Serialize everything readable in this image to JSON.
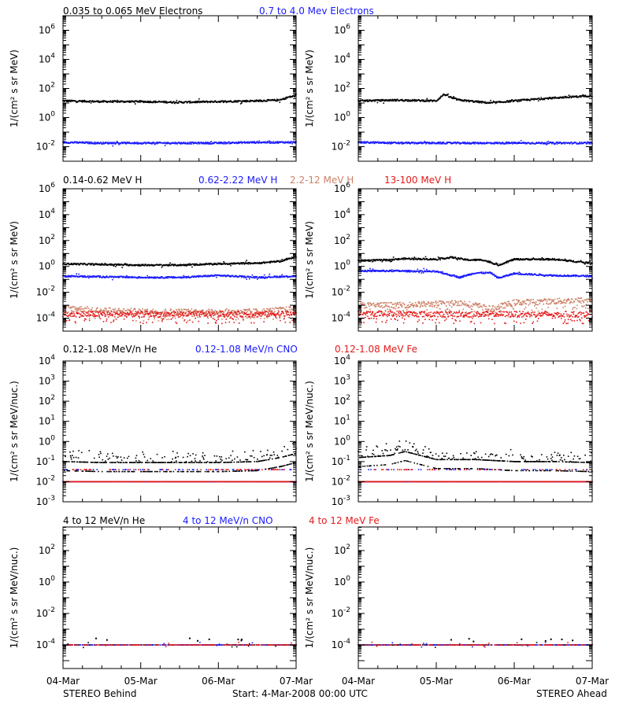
{
  "colors": {
    "black": "#000000",
    "blue": "#1a1aff",
    "salmon": "#cc8066",
    "red": "#e61a1a"
  },
  "rows": [
    {
      "legend": [
        {
          "text": "0.035 to 0.065 MeV Electrons",
          "color": "#000000"
        },
        {
          "text": "0.7 to 4.0 Mev Electrons",
          "color": "#1a1aff"
        }
      ]
    },
    {
      "legend": [
        {
          "text": "0.14-0.62 MeV H",
          "color": "#000000"
        },
        {
          "text": "0.62-2.22 MeV H",
          "color": "#1a1aff"
        },
        {
          "text": "2.2-12 MeV H",
          "color": "#cc8066"
        },
        {
          "text": "13-100 MeV H",
          "color": "#e61a1a"
        }
      ]
    },
    {
      "legend": [
        {
          "text": "0.12-1.08 MeV/n He",
          "color": "#000000"
        },
        {
          "text": "0.12-1.08 MeV/n CNO",
          "color": "#1a1aff"
        },
        {
          "text": "0.12-1.08 MeV Fe",
          "color": "#e61a1a"
        }
      ]
    },
    {
      "legend": [
        {
          "text": "4 to 12 MeV/n He",
          "color": "#000000"
        },
        {
          "text": "4 to 12 MeV/n CNO",
          "color": "#1a1aff"
        },
        {
          "text": "4 to 12 MeV Fe",
          "color": "#e61a1a"
        }
      ]
    }
  ],
  "x_ticks": [
    "04-Mar",
    "05-Mar",
    "06-Mar",
    "07-Mar"
  ],
  "footer": {
    "left": "STEREO Behind",
    "center": "Start:  4-Mar-2008 00:00 UTC",
    "right": "STEREO Ahead"
  },
  "chart_data": [
    {
      "type": "scatter",
      "panel": "STEREO Behind",
      "row": 0,
      "ylabel": "1/(cm² s sr MeV)",
      "yscale": "log",
      "ylim_exp": [
        -3,
        7
      ],
      "ytick_exp": [
        -2,
        0,
        2,
        4,
        6
      ],
      "x_days": [
        0,
        3
      ],
      "series": [
        {
          "name": "0.035 to 0.065 MeV Electrons",
          "color": "#000000",
          "x": [
            0,
            0.5,
            1,
            1.5,
            2,
            2.5,
            2.8,
            2.9,
            3
          ],
          "y_log10": [
            1.15,
            1.1,
            1.1,
            1.05,
            1.1,
            1.15,
            1.2,
            1.4,
            1.5
          ]
        },
        {
          "name": "0.7 to 4.0 Mev Electrons",
          "color": "#1a1aff",
          "x": [
            0,
            0.5,
            1,
            1.5,
            2,
            2.5,
            3
          ],
          "y_log10": [
            -1.7,
            -1.75,
            -1.75,
            -1.75,
            -1.75,
            -1.7,
            -1.7
          ]
        }
      ]
    },
    {
      "type": "scatter",
      "panel": "STEREO Ahead",
      "row": 0,
      "ylabel": "1/(cm² s sr MeV)",
      "yscale": "log",
      "ylim_exp": [
        -3,
        7
      ],
      "ytick_exp": [
        -2,
        0,
        2,
        4,
        6
      ],
      "x_days": [
        0,
        3
      ],
      "series": [
        {
          "name": "0.035 to 0.065 MeV Electrons",
          "color": "#000000",
          "x": [
            0,
            0.5,
            1,
            1.1,
            1.2,
            1.3,
            1.5,
            1.7,
            2,
            2.5,
            3
          ],
          "y_log10": [
            1.15,
            1.2,
            1.15,
            1.6,
            1.35,
            1.2,
            1.1,
            1.0,
            1.15,
            1.35,
            1.5
          ]
        },
        {
          "name": "0.7 to 4.0 Mev Electrons",
          "color": "#1a1aff",
          "x": [
            0,
            0.5,
            1,
            1.5,
            2,
            2.5,
            3
          ],
          "y_log10": [
            -1.7,
            -1.75,
            -1.75,
            -1.75,
            -1.75,
            -1.75,
            -1.75
          ]
        }
      ]
    },
    {
      "type": "scatter",
      "panel": "STEREO Behind",
      "row": 1,
      "ylabel": "1/(cm² s sr MeV)",
      "yscale": "log",
      "ylim_exp": [
        -5,
        6
      ],
      "ytick_exp": [
        -4,
        -2,
        0,
        2,
        4,
        6
      ],
      "x_days": [
        0,
        3
      ],
      "series": [
        {
          "name": "0.14-0.62 MeV H",
          "color": "#000000",
          "x": [
            0,
            0.5,
            1,
            1.5,
            2,
            2.5,
            2.8,
            3
          ],
          "y_log10": [
            0.2,
            0.15,
            0.1,
            0.1,
            0.2,
            0.25,
            0.4,
            0.75
          ]
        },
        {
          "name": "0.62-2.22 MeV H",
          "color": "#1a1aff",
          "x": [
            0,
            0.5,
            1,
            1.5,
            2,
            2.5,
            3
          ],
          "y_log10": [
            -0.75,
            -0.8,
            -0.85,
            -0.85,
            -0.7,
            -0.85,
            -0.75
          ]
        },
        {
          "name": "2.2-12 MeV H",
          "color": "#cc8066",
          "x": [
            0,
            0.5,
            1,
            1.5,
            2,
            2.5,
            3
          ],
          "y_log10": [
            -3.2,
            -3.4,
            -3.5,
            -3.5,
            -3.5,
            -3.5,
            -3.3
          ]
        },
        {
          "name": "13-100 MeV H",
          "color": "#e61a1a",
          "x": [
            0,
            0.5,
            1,
            1.5,
            2,
            2.5,
            3
          ],
          "y_log10": [
            -3.7,
            -3.7,
            -3.7,
            -3.7,
            -3.7,
            -3.7,
            -3.65
          ]
        }
      ]
    },
    {
      "type": "scatter",
      "panel": "STEREO Ahead",
      "row": 1,
      "ylabel": "1/(cm² s sr MeV)",
      "yscale": "log",
      "ylim_exp": [
        -5,
        6
      ],
      "ytick_exp": [
        -4,
        -2,
        0,
        2,
        4,
        6
      ],
      "x_days": [
        0,
        3
      ],
      "series": [
        {
          "name": "0.14-0.62 MeV H",
          "color": "#000000",
          "x": [
            0,
            0.4,
            0.6,
            1,
            1.2,
            1.4,
            1.6,
            1.8,
            2,
            2.5,
            3
          ],
          "y_log10": [
            0.45,
            0.5,
            0.6,
            0.55,
            0.7,
            0.5,
            0.5,
            0.1,
            0.55,
            0.55,
            0.25
          ]
        },
        {
          "name": "0.62-2.22 MeV H",
          "color": "#1a1aff",
          "x": [
            0,
            0.5,
            1,
            1.3,
            1.5,
            1.7,
            1.8,
            2,
            2.5,
            3
          ],
          "y_log10": [
            -0.35,
            -0.35,
            -0.4,
            -0.85,
            -0.5,
            -0.5,
            -0.9,
            -0.55,
            -0.7,
            -0.75
          ]
        },
        {
          "name": "2.2-12 MeV H",
          "color": "#cc8066",
          "x": [
            0,
            0.5,
            1,
            1.3,
            1.5,
            1.7,
            2,
            2.5,
            3
          ],
          "y_log10": [
            -3.0,
            -3.0,
            -2.9,
            -2.8,
            -3.0,
            -3.3,
            -2.8,
            -2.7,
            -2.6
          ]
        },
        {
          "name": "13-100 MeV H",
          "color": "#e61a1a",
          "x": [
            0,
            0.5,
            1,
            1.5,
            2,
            2.5,
            3
          ],
          "y_log10": [
            -3.65,
            -3.65,
            -3.7,
            -3.7,
            -3.7,
            -3.7,
            -3.7
          ]
        }
      ]
    },
    {
      "type": "scatter",
      "panel": "STEREO Behind",
      "row": 2,
      "ylabel": "1/(cm² s sr MeV/nuc.)",
      "yscale": "log",
      "ylim_exp": [
        -3,
        4
      ],
      "ytick_exp": [
        -3,
        -2,
        -1,
        0,
        1,
        2,
        3,
        4
      ],
      "x_days": [
        0,
        3
      ],
      "series": [
        {
          "name": "0.12-1.08 MeV/n He",
          "color": "#000000",
          "x": [
            0,
            0.5,
            1,
            1.5,
            2,
            2.5,
            2.8,
            3
          ],
          "y_log10": [
            -1.0,
            -1.05,
            -1.05,
            -1.05,
            -1.05,
            -1.0,
            -0.8,
            -0.6
          ]
        },
        {
          "name": "0.12-1.08 MeV/n CNO",
          "color": "#1a1aff",
          "x": [
            0,
            1,
            2,
            3
          ],
          "y_log10": [
            -2.0,
            -2.0,
            -2.0,
            -2.0
          ]
        },
        {
          "name": "0.12-1.08 MeV Fe",
          "color": "#e61a1a",
          "x": [
            0,
            1,
            2,
            3
          ],
          "y_log10": [
            -2.0,
            -2.0,
            -2.0,
            -2.0
          ]
        }
      ]
    },
    {
      "type": "scatter",
      "panel": "STEREO Ahead",
      "row": 2,
      "ylabel": "1/(cm² s sr MeV/nuc.)",
      "yscale": "log",
      "ylim_exp": [
        -3,
        4
      ],
      "ytick_exp": [
        -3,
        -2,
        -1,
        0,
        1,
        2,
        3,
        4
      ],
      "x_days": [
        0,
        3
      ],
      "series": [
        {
          "name": "0.12-1.08 MeV/n He",
          "color": "#000000",
          "x": [
            0,
            0.4,
            0.6,
            0.8,
            1,
            1.5,
            2,
            2.5,
            3
          ],
          "y_log10": [
            -0.8,
            -0.7,
            -0.5,
            -0.7,
            -0.9,
            -0.9,
            -1.0,
            -1.0,
            -1.05
          ]
        },
        {
          "name": "0.12-1.08 MeV/n CNO",
          "color": "#1a1aff",
          "x": [
            0,
            1,
            2,
            3
          ],
          "y_log10": [
            -2.0,
            -2.0,
            -2.0,
            -2.0
          ]
        },
        {
          "name": "0.12-1.08 MeV Fe",
          "color": "#e61a1a",
          "x": [
            0,
            1,
            2,
            3
          ],
          "y_log10": [
            -2.0,
            -2.0,
            -2.0,
            -2.0
          ]
        }
      ]
    },
    {
      "type": "scatter",
      "panel": "STEREO Behind",
      "row": 3,
      "ylabel": "1/(cm² s sr MeV/nuc.)",
      "yscale": "log",
      "ylim_exp": [
        -5.5,
        3.5
      ],
      "ytick_exp": [
        -4,
        -2,
        0,
        2
      ],
      "x_days": [
        0,
        3
      ],
      "series": [
        {
          "name": "4 to 12 MeV/n He",
          "color": "#000000",
          "x": [
            0,
            1,
            2,
            3
          ],
          "y_log10": [
            -4.0,
            -4.0,
            -4.0,
            -4.0
          ]
        },
        {
          "name": "4 to 12 MeV/n CNO",
          "color": "#1a1aff",
          "x": [
            0,
            1,
            2,
            3
          ],
          "y_log10": [
            -4.0,
            -4.0,
            -4.0,
            -4.0
          ]
        },
        {
          "name": "4 to 12 MeV Fe",
          "color": "#e61a1a",
          "x": [
            0,
            3
          ],
          "y_log10": [
            -4.0,
            -4.0
          ]
        }
      ]
    },
    {
      "type": "scatter",
      "panel": "STEREO Ahead",
      "row": 3,
      "ylabel": "1/(cm² s sr MeV/nuc.)",
      "yscale": "log",
      "ylim_exp": [
        -5.5,
        3.5
      ],
      "ytick_exp": [
        -4,
        -2,
        0,
        2
      ],
      "x_days": [
        0,
        3
      ],
      "series": [
        {
          "name": "4 to 12 MeV/n He",
          "color": "#000000",
          "x": [
            0,
            1,
            2,
            3
          ],
          "y_log10": [
            -4.0,
            -4.0,
            -4.0,
            -4.0
          ]
        },
        {
          "name": "4 to 12 MeV/n CNO",
          "color": "#1a1aff",
          "x": [
            0,
            1,
            2,
            3
          ],
          "y_log10": [
            -4.0,
            -4.0,
            -4.0,
            -4.0
          ]
        },
        {
          "name": "4 to 12 MeV Fe",
          "color": "#e61a1a",
          "x": [
            0,
            3
          ],
          "y_log10": [
            -4.0,
            -4.0
          ]
        }
      ]
    }
  ]
}
